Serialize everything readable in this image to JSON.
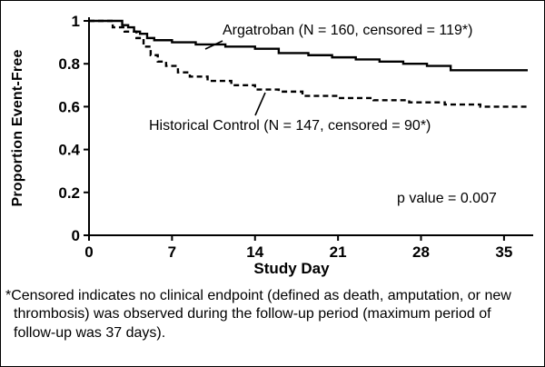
{
  "chart_data": {
    "type": "line",
    "subtype": "kaplan-meier-step",
    "title": "",
    "xlabel": "Study Day",
    "ylabel": "Proportion Event-Free",
    "xlim": [
      0,
      37
    ],
    "ylim": [
      0,
      1
    ],
    "grid": false,
    "legend_position": "inline-callouts",
    "xtick_values": [
      0,
      7,
      14,
      21,
      28,
      35
    ],
    "xtick_labels": [
      "0",
      "7",
      "14",
      "21",
      "28",
      "35"
    ],
    "ytick_values": [
      1,
      0.8,
      0.6,
      0.4,
      0.2,
      0
    ],
    "ytick_labels": [
      "1",
      "0.8",
      "0.6",
      "0.4",
      "0.2",
      "0"
    ],
    "annotation": "p value = 0.007",
    "series": [
      {
        "name": "Argatroban",
        "label": "Argatroban (N = 160, censored = 119*)",
        "style": "solid",
        "color": "#000000",
        "x": [
          0,
          2.8,
          3.3,
          3.8,
          4.3,
          4.9,
          5.5,
          7,
          9,
          11.5,
          14,
          16,
          18.5,
          20.5,
          22.5,
          24.5,
          26.5,
          28.5,
          30.5,
          37
        ],
        "y": [
          1.0,
          0.98,
          0.97,
          0.95,
          0.94,
          0.92,
          0.91,
          0.9,
          0.89,
          0.88,
          0.87,
          0.85,
          0.84,
          0.83,
          0.82,
          0.81,
          0.8,
          0.79,
          0.77,
          0.77
        ]
      },
      {
        "name": "Historical Control",
        "label": "Historical Control (N = 147, censored = 90*)",
        "style": "dashed",
        "color": "#000000",
        "x": [
          0,
          2,
          3,
          4,
          4.6,
          5.2,
          5.8,
          6.5,
          7.5,
          8.5,
          10,
          12,
          14,
          16,
          18,
          21,
          24,
          27,
          30,
          33,
          37
        ],
        "y": [
          1.0,
          0.97,
          0.95,
          0.92,
          0.88,
          0.84,
          0.81,
          0.79,
          0.76,
          0.74,
          0.72,
          0.7,
          0.68,
          0.67,
          0.65,
          0.64,
          0.63,
          0.62,
          0.61,
          0.6,
          0.6
        ]
      }
    ]
  },
  "footnote": "*Censored indicates no clinical endpoint (defined as death, amputation, or new thrombosis) was observed during the follow-up period (maximum period of follow-up was 37 days)."
}
